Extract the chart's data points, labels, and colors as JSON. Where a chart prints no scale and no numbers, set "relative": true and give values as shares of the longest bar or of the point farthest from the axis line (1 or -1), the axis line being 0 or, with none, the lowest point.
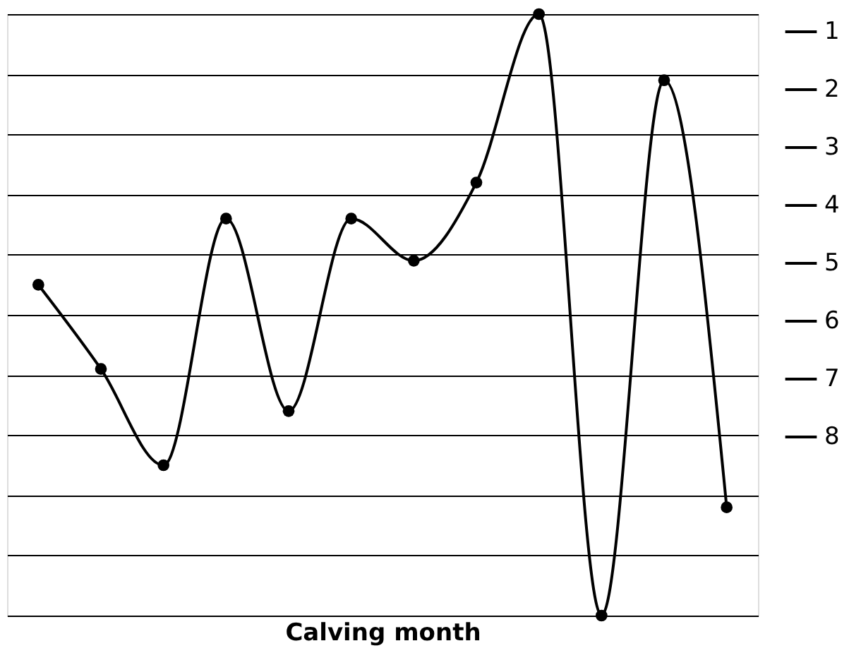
{
  "chart_data": {
    "type": "line",
    "xlabel": "Calving month",
    "relative": true,
    "categories": [
      null,
      null,
      null,
      null,
      null,
      null,
      null,
      null,
      null,
      null,
      null,
      null
    ],
    "series": [
      {
        "name": "1",
        "color": "#000000",
        "values": [
          0.55,
          0.41,
          0.25,
          0.66,
          0.34,
          0.66,
          0.59,
          0.72,
          1,
          0,
          0.89,
          0.18
        ]
      },
      {
        "name": "2",
        "color": "#000000",
        "values": [
          null,
          null,
          null,
          null,
          null,
          null,
          null,
          null,
          null,
          null,
          null,
          null
        ]
      },
      {
        "name": "3",
        "color": "#000000",
        "values": [
          null,
          null,
          null,
          null,
          null,
          null,
          null,
          null,
          null,
          null,
          null,
          null
        ]
      },
      {
        "name": "4",
        "color": "#000000",
        "values": [
          null,
          null,
          null,
          null,
          null,
          null,
          null,
          null,
          null,
          null,
          null,
          null
        ]
      },
      {
        "name": "5",
        "color": "#000000",
        "values": [
          null,
          null,
          null,
          null,
          null,
          null,
          null,
          null,
          null,
          null,
          null,
          null
        ]
      },
      {
        "name": "6",
        "color": "#000000",
        "values": [
          null,
          null,
          null,
          null,
          null,
          null,
          null,
          null,
          null,
          null,
          null,
          null
        ]
      },
      {
        "name": "7",
        "color": "#000000",
        "values": [
          null,
          null,
          null,
          null,
          null,
          null,
          null,
          null,
          null,
          null,
          null,
          null
        ]
      },
      {
        "name": "8",
        "color": "#000000",
        "values": [
          null,
          null,
          null,
          null,
          null,
          null,
          null,
          null,
          null,
          null,
          null,
          null
        ]
      }
    ],
    "grid": "y",
    "legend": "right",
    "marker": "circle",
    "line_style": "solid"
  }
}
